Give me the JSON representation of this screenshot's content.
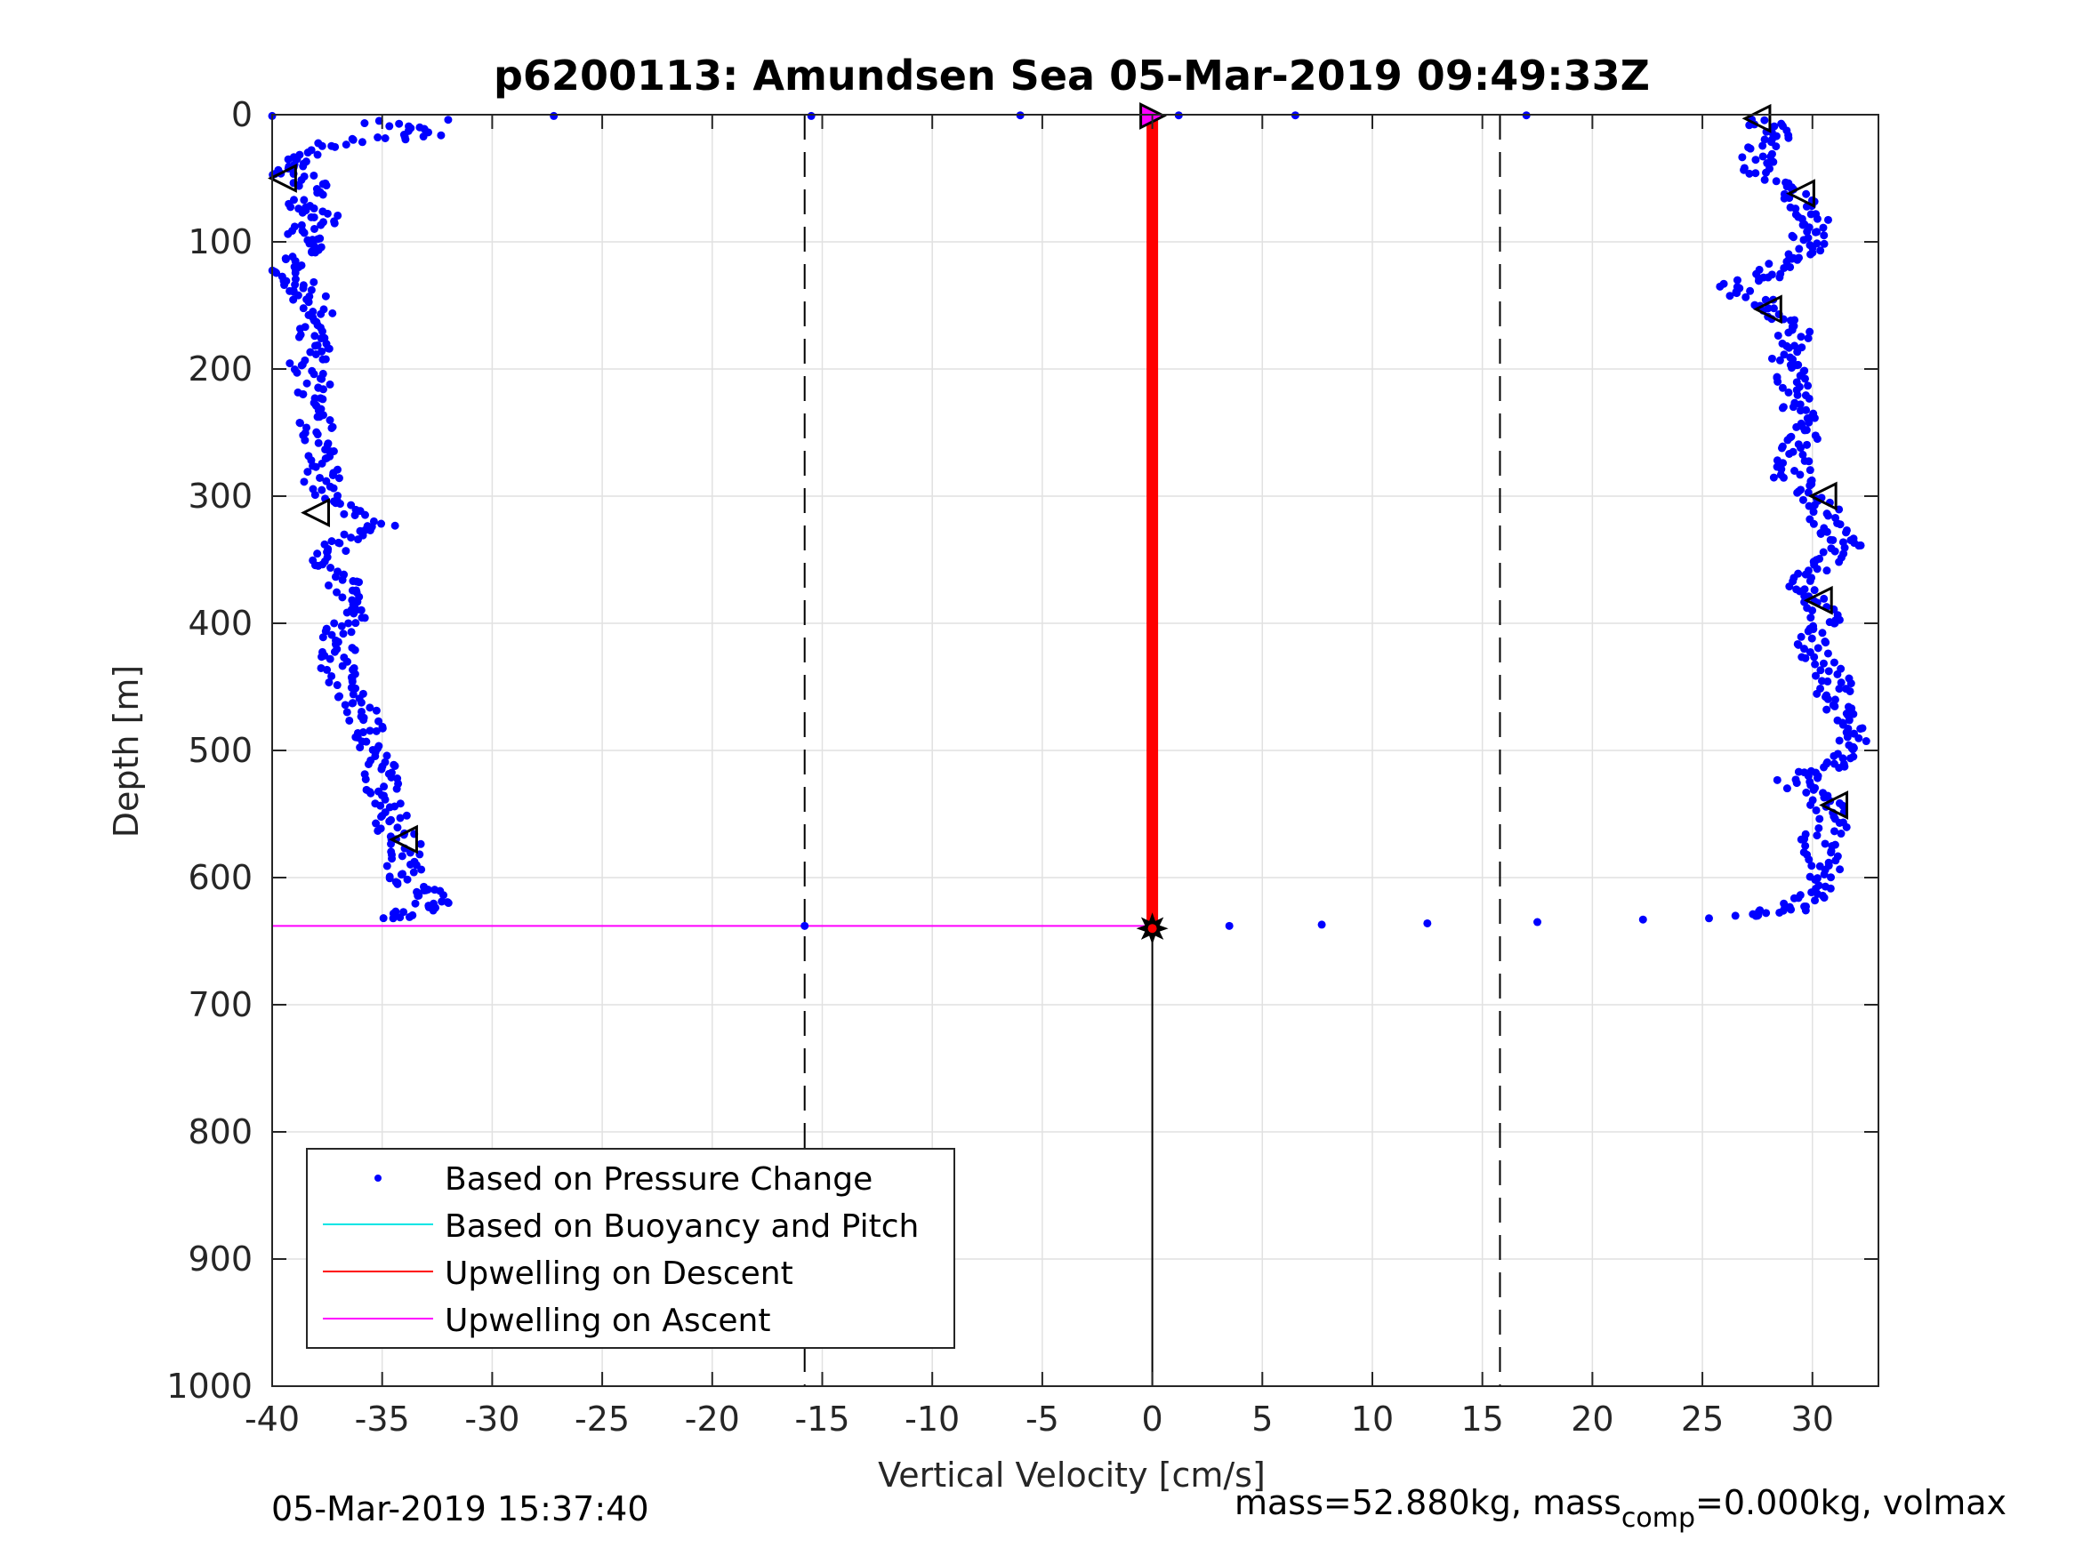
{
  "figure": {
    "footer_left": "05-Mar-2019 15:37:40",
    "footer_right_a": "mass=52.880kg, mass",
    "footer_right_sub": "comp",
    "footer_right_b": "=0.000kg, volmax"
  },
  "colors": {
    "pressure_points": "#0000ff",
    "buoyancy_pitch": "#00e5e5",
    "upwelling_descent": "#ff0000",
    "upwelling_ascent": "#ff00ff",
    "grid": "#e1e1e1",
    "axes": "#262626"
  },
  "chart_data": {
    "type": "scatter",
    "title": "p6200113: Amundsen Sea 05-Mar-2019 09:49:33Z",
    "xlabel": "Vertical Velocity [cm/s]",
    "ylabel": "Depth [m]",
    "xlim": [
      -40,
      33
    ],
    "ylim": [
      0,
      1000
    ],
    "y_reversed": true,
    "grid": true,
    "xticks": [
      -40,
      -35,
      -30,
      -25,
      -20,
      -15,
      -10,
      -5,
      0,
      5,
      10,
      15,
      20,
      25,
      30
    ],
    "yticks": [
      0,
      100,
      200,
      300,
      400,
      500,
      600,
      700,
      800,
      900,
      1000
    ],
    "legend_position": "bottom-left",
    "legend": [
      {
        "label": "Based on Pressure Change",
        "kind": "marker",
        "color": "#0000ff"
      },
      {
        "label": "Based on Buoyancy and Pitch",
        "kind": "line",
        "color": "#00e5e5"
      },
      {
        "label": "Upwelling on Descent",
        "kind": "line",
        "color": "#ff0000"
      },
      {
        "label": "Upwelling on Ascent",
        "kind": "line",
        "color": "#ff00ff"
      }
    ],
    "reference_lines_x": [
      -15.8,
      15.8
    ],
    "series": [
      {
        "name": "Based on Pressure Change",
        "descent_profile": [
          [
            -35,
            5
          ],
          [
            -33,
            15
          ],
          [
            -37,
            22
          ],
          [
            -39,
            35
          ],
          [
            -39.5,
            45
          ],
          [
            -38,
            55
          ],
          [
            -38.5,
            70
          ],
          [
            -37.5,
            80
          ],
          [
            -39,
            92
          ],
          [
            -38,
            105
          ],
          [
            -39.5,
            118
          ],
          [
            -39,
            130
          ],
          [
            -38.5,
            140
          ],
          [
            -38,
            155
          ],
          [
            -38.5,
            170
          ],
          [
            -38,
            185
          ],
          [
            -38.5,
            200
          ],
          [
            -38,
            215
          ],
          [
            -38.5,
            230
          ],
          [
            -38,
            245
          ],
          [
            -37.8,
            260
          ],
          [
            -37.5,
            275
          ],
          [
            -37.8,
            290
          ],
          [
            -37.5,
            305
          ],
          [
            -35,
            322
          ],
          [
            -37,
            335
          ],
          [
            -37.5,
            350
          ],
          [
            -37,
            365
          ],
          [
            -36.5,
            380
          ],
          [
            -36.5,
            395
          ],
          [
            -37,
            410
          ],
          [
            -37,
            425
          ],
          [
            -37,
            440
          ],
          [
            -36.5,
            455
          ],
          [
            -36,
            470
          ],
          [
            -35.5,
            485
          ],
          [
            -35.5,
            500
          ],
          [
            -35,
            515
          ],
          [
            -35,
            530
          ],
          [
            -34.5,
            545
          ],
          [
            -34.5,
            560
          ],
          [
            -34,
            575
          ],
          [
            -34,
            590
          ],
          [
            -33.8,
            605
          ],
          [
            -32.5,
            615
          ],
          [
            -33,
            625
          ],
          [
            -34.5,
            632
          ]
        ],
        "ascent_profile": [
          [
            27.5,
            5
          ],
          [
            28.5,
            15
          ],
          [
            27.5,
            30
          ],
          [
            27.5,
            45
          ],
          [
            29,
            60
          ],
          [
            30,
            75
          ],
          [
            30,
            88
          ],
          [
            29.8,
            100
          ],
          [
            29.5,
            112
          ],
          [
            28,
            125
          ],
          [
            26,
            135
          ],
          [
            28,
            150
          ],
          [
            29.2,
            165
          ],
          [
            29,
            180
          ],
          [
            28.8,
            195
          ],
          [
            29.2,
            210
          ],
          [
            29.2,
            225
          ],
          [
            29.5,
            240
          ],
          [
            29.5,
            255
          ],
          [
            29.2,
            270
          ],
          [
            29,
            285
          ],
          [
            30.2,
            300
          ],
          [
            30.5,
            315
          ],
          [
            31,
            330
          ],
          [
            31.5,
            340
          ],
          [
            30.5,
            355
          ],
          [
            29.5,
            370
          ],
          [
            30.5,
            385
          ],
          [
            30.5,
            400
          ],
          [
            29.8,
            415
          ],
          [
            30.5,
            430
          ],
          [
            31,
            445
          ],
          [
            31,
            460
          ],
          [
            31.5,
            475
          ],
          [
            31.8,
            490
          ],
          [
            31.5,
            505
          ],
          [
            30.5,
            515
          ],
          [
            29,
            525
          ],
          [
            30.5,
            540
          ],
          [
            31,
            555
          ],
          [
            30.2,
            570
          ],
          [
            30.5,
            585
          ],
          [
            30.5,
            600
          ],
          [
            30,
            615
          ],
          [
            29,
            625
          ],
          [
            27.5,
            630
          ]
        ],
        "surface_points": [
          [
            -40,
            1
          ],
          [
            -32,
            4
          ],
          [
            -27.2,
            1
          ],
          [
            -15.5,
            1
          ],
          [
            -6,
            0.5
          ],
          [
            1.2,
            0.5
          ],
          [
            6.5,
            0.5
          ],
          [
            17,
            0.5
          ]
        ],
        "bottom_points": [
          [
            -15.8,
            638
          ],
          [
            3.5,
            638
          ],
          [
            7.7,
            637
          ],
          [
            12.5,
            636
          ],
          [
            17.5,
            635
          ],
          [
            22.3,
            633
          ],
          [
            25.3,
            632
          ],
          [
            26.5,
            630
          ]
        ]
      },
      {
        "name": "Upwelling on Descent",
        "x": [
          0,
          0
        ],
        "y": [
          0,
          638
        ]
      },
      {
        "name": "Upwelling on Ascent",
        "x": [
          -40,
          0
        ],
        "y": [
          0,
          0
        ],
        "x2": [
          -40,
          0
        ],
        "y2": [
          638,
          638
        ]
      },
      {
        "name": "Based on Buoyancy and Pitch",
        "x": [],
        "y": []
      }
    ],
    "markers": {
      "descent_triangles": [
        [
          -39.5,
          50
        ],
        [
          -38,
          313
        ],
        [
          -34,
          570
        ]
      ],
      "ascent_triangles": [
        [
          27.5,
          3
        ],
        [
          29.5,
          62
        ],
        [
          28,
          153
        ],
        [
          30.5,
          300
        ],
        [
          30.3,
          382
        ],
        [
          31,
          543
        ]
      ],
      "surface_triangle": [
        0,
        1
      ],
      "bottom_star": [
        0,
        640
      ]
    }
  }
}
